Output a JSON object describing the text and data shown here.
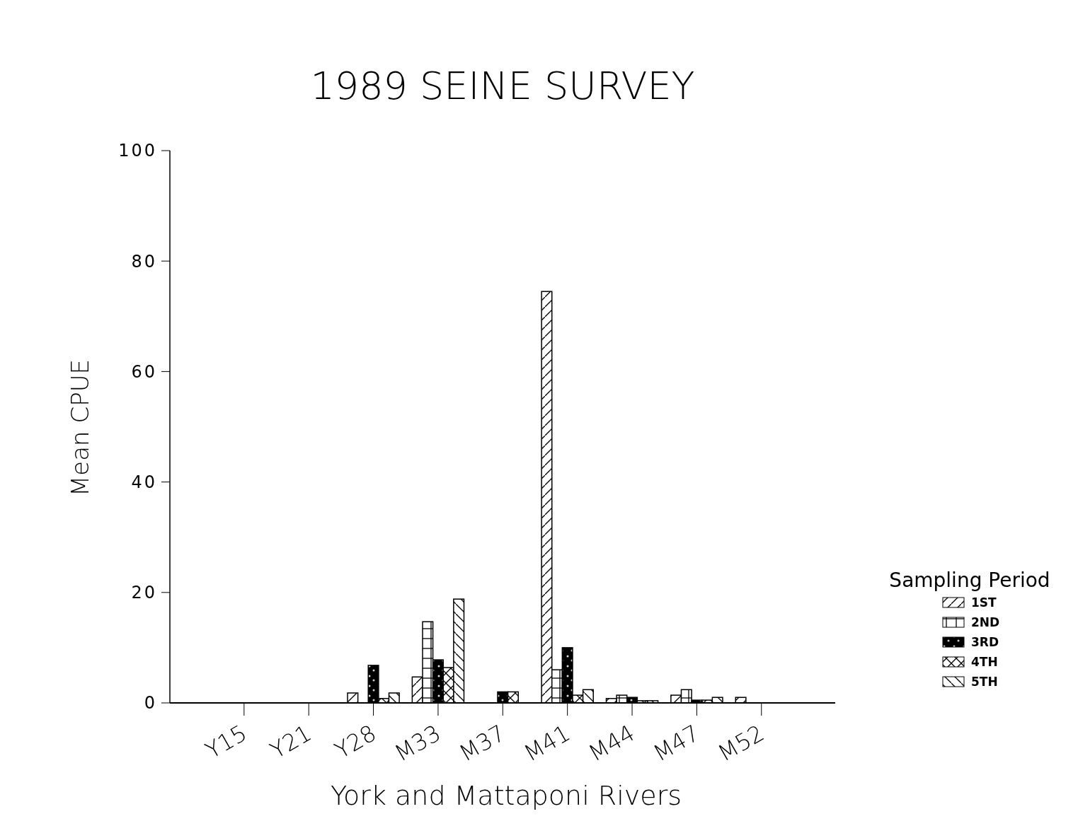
{
  "chart_data": {
    "type": "bar",
    "title": "1989 SEINE SURVEY",
    "xlabel": "York and Mattaponi Rivers",
    "ylabel": "Mean CPUE",
    "legend_title": "Sampling Period",
    "legend": "right",
    "grid": false,
    "categories": [
      "Y15",
      "Y21",
      "Y28",
      "M33",
      "M37",
      "M41",
      "M44",
      "M47",
      "M52"
    ],
    "ylim": [
      0,
      100
    ],
    "yticks": [
      0,
      20,
      40,
      60,
      80,
      100
    ],
    "series": [
      {
        "name": "1ST",
        "color": "#000000",
        "values": [
          0,
          0,
          1.8,
          4.7,
          0,
          74.5,
          0.8,
          1.4,
          1.0
        ]
      },
      {
        "name": "2ND",
        "color": "#000000",
        "values": [
          0,
          0,
          0,
          14.7,
          0,
          6,
          1.4,
          2.4,
          0
        ]
      },
      {
        "name": "3RD",
        "color": "#000000",
        "values": [
          0,
          0,
          6.8,
          7.8,
          2,
          10,
          1.0,
          0.5,
          0
        ]
      },
      {
        "name": "4TH",
        "color": "#000000",
        "values": [
          0,
          0,
          0.8,
          6.4,
          2,
          1.4,
          0.4,
          0.5,
          0
        ]
      },
      {
        "name": "5TH",
        "color": "#000000",
        "values": [
          0,
          0,
          1.8,
          18.8,
          0,
          2.4,
          0.4,
          1.0,
          0
        ]
      }
    ]
  }
}
